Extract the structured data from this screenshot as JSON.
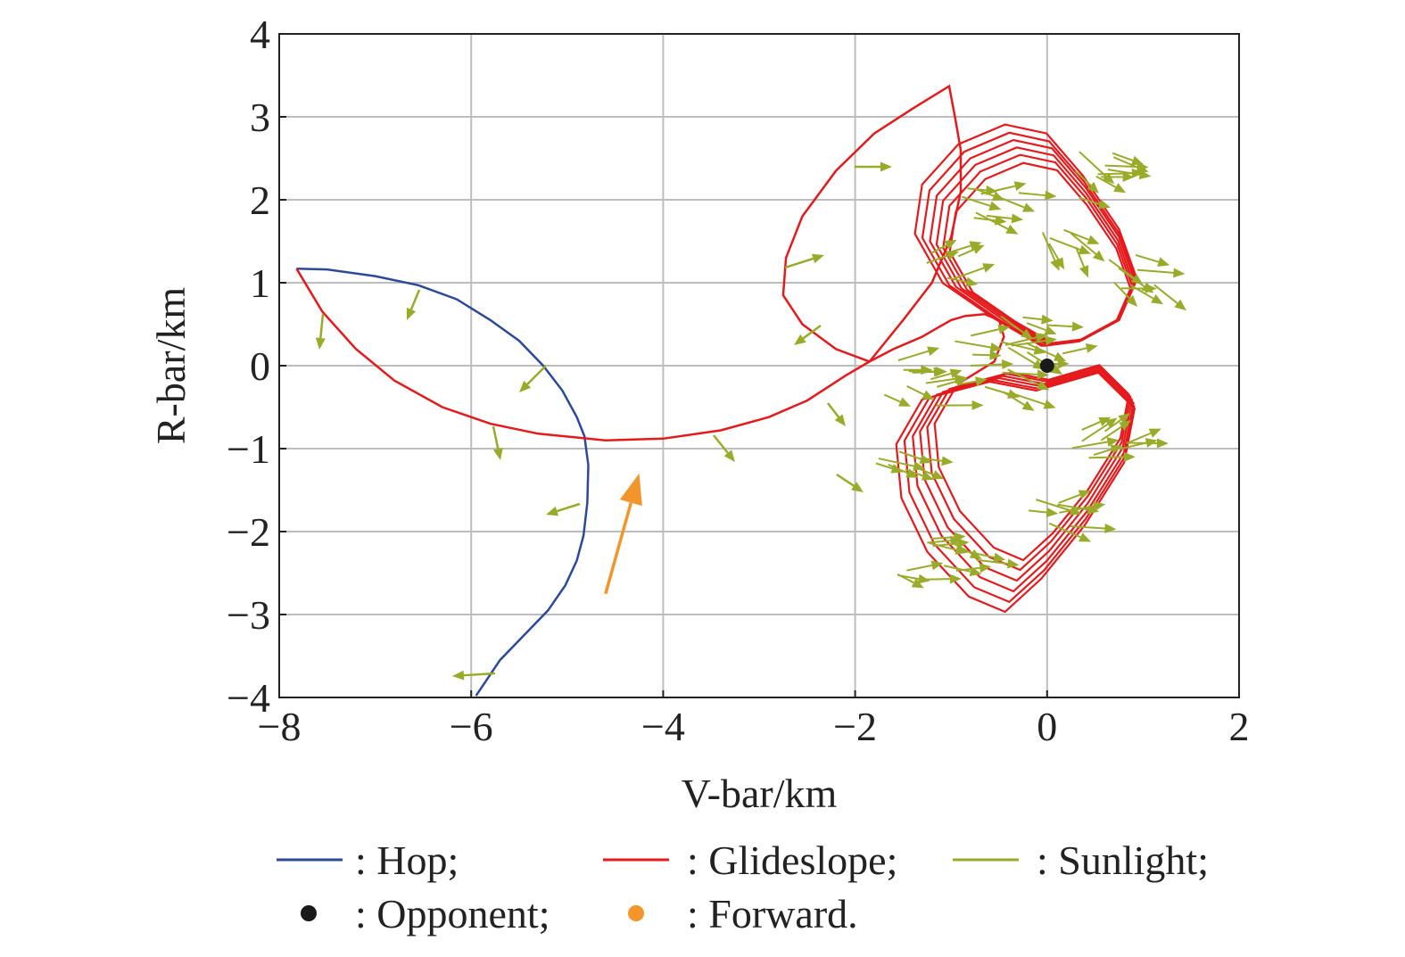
{
  "chart_data": {
    "type": "line",
    "xlabel": "V-bar/km",
    "ylabel": "R-bar/km",
    "xlim": [
      -8,
      2
    ],
    "ylim": [
      -4,
      4
    ],
    "xticks": [
      -8,
      -6,
      -4,
      -2,
      0,
      2
    ],
    "yticks": [
      -4,
      -3,
      -2,
      -1,
      0,
      1,
      2,
      3,
      4
    ],
    "xtick_labels": [
      "−8",
      "−6",
      "−4",
      "−2",
      "0",
      "2"
    ],
    "ytick_labels": [
      "−4",
      "−3",
      "−2",
      "−1",
      "0",
      "1",
      "2",
      "3",
      "4"
    ],
    "grid": true,
    "legend_position": "bottom",
    "series": [
      {
        "name": "Hop",
        "color": "#2c4a9a",
        "x": [
          -7.82,
          -7.5,
          -7.0,
          -6.55,
          -6.15,
          -5.8,
          -5.5,
          -5.25,
          -5.05,
          -4.9,
          -4.82,
          -4.78,
          -4.79,
          -4.83,
          -4.9,
          -5.02,
          -5.2,
          -5.45,
          -5.7,
          -5.95
        ],
        "y": [
          1.17,
          1.16,
          1.08,
          0.97,
          0.8,
          0.55,
          0.3,
          0.0,
          -0.3,
          -0.62,
          -0.85,
          -1.2,
          -1.65,
          -2.05,
          -2.35,
          -2.65,
          -2.95,
          -3.25,
          -3.55,
          -3.98
        ]
      },
      {
        "name": "Glideslope",
        "color": "#e41a1c",
        "x": [
          -7.82,
          -7.55,
          -7.2,
          -6.8,
          -6.3,
          -5.8,
          -5.3,
          -4.6,
          -4.0,
          -3.4,
          -2.9,
          -2.5,
          -2.1,
          -1.85,
          -1.6,
          -1.3,
          -1.15,
          -1.0,
          -0.85,
          -0.65,
          -0.5,
          -0.45,
          -0.55,
          -0.9
        ],
        "y": [
          1.17,
          0.65,
          0.2,
          -0.18,
          -0.5,
          -0.7,
          -0.82,
          -0.9,
          -0.88,
          -0.78,
          -0.62,
          -0.42,
          -0.12,
          0.05,
          0.2,
          0.35,
          0.45,
          0.55,
          0.6,
          0.62,
          0.55,
          0.35,
          0.05,
          -0.2
        ]
      },
      {
        "name": "Sunlight",
        "color": "#9aab2a",
        "x": [],
        "y": []
      },
      {
        "name": "Opponent",
        "color": "#1a1a1a",
        "x": [
          0
        ],
        "y": [
          0
        ]
      },
      {
        "name": "Forward",
        "color": "#f2962c",
        "x": [
          -4.6,
          -4.25
        ],
        "y": [
          -2.75,
          -1.3
        ]
      }
    ],
    "legend": [
      {
        "label": ": Hop;",
        "color": "#2c4a9a",
        "symbol": "line"
      },
      {
        "label": ": Glideslope;",
        "color": "#e41a1c",
        "symbol": "line"
      },
      {
        "label": ": Sunlight;",
        "color": "#9aab2a",
        "symbol": "line"
      },
      {
        "label": ": Opponent;",
        "color": "#1a1a1a",
        "symbol": "dot"
      },
      {
        "label": ": Forward.",
        "color": "#f2962c",
        "symbol": "dot"
      }
    ]
  }
}
